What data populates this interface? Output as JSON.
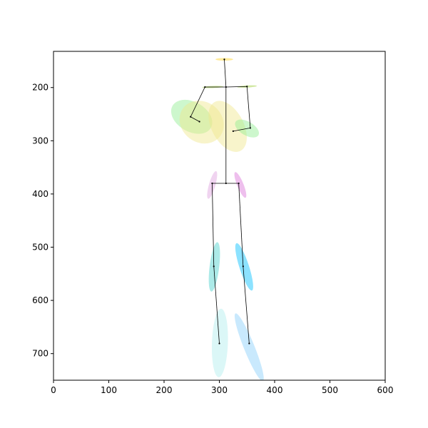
{
  "chart_data": {
    "type": "scatter",
    "title": "",
    "xlabel": "",
    "ylabel": "",
    "xlim": [
      0,
      600
    ],
    "ylim": [
      750,
      132
    ],
    "y_inverted": true,
    "grid": false,
    "x_ticks": [
      0,
      100,
      200,
      300,
      400,
      500,
      600
    ],
    "y_ticks": [
      200,
      300,
      400,
      500,
      600,
      700
    ],
    "joints": [
      {
        "name": "head",
        "x": 309,
        "y": 147
      },
      {
        "name": "neck",
        "x": 312,
        "y": 199
      },
      {
        "name": "right-shoulder",
        "x": 274,
        "y": 199
      },
      {
        "name": "left-shoulder",
        "x": 350,
        "y": 198
      },
      {
        "name": "right-elbow",
        "x": 248,
        "y": 255
      },
      {
        "name": "right-wrist",
        "x": 264,
        "y": 264
      },
      {
        "name": "left-elbow",
        "x": 356,
        "y": 276
      },
      {
        "name": "left-wrist",
        "x": 325,
        "y": 282
      },
      {
        "name": "pelvis",
        "x": 312,
        "y": 380
      },
      {
        "name": "right-hip",
        "x": 287,
        "y": 380
      },
      {
        "name": "left-hip",
        "x": 335,
        "y": 380
      },
      {
        "name": "right-knee",
        "x": 290,
        "y": 536
      },
      {
        "name": "left-knee",
        "x": 343,
        "y": 536
      },
      {
        "name": "right-ankle",
        "x": 300,
        "y": 681
      },
      {
        "name": "left-ankle",
        "x": 354,
        "y": 681
      }
    ],
    "bones": [
      [
        "head",
        "neck"
      ],
      [
        "neck",
        "right-shoulder"
      ],
      [
        "neck",
        "left-shoulder"
      ],
      [
        "right-shoulder",
        "right-elbow"
      ],
      [
        "right-elbow",
        "right-wrist"
      ],
      [
        "left-shoulder",
        "left-elbow"
      ],
      [
        "left-elbow",
        "left-wrist"
      ],
      [
        "neck",
        "pelvis"
      ],
      [
        "pelvis",
        "right-hip"
      ],
      [
        "pelvis",
        "left-hip"
      ],
      [
        "right-hip",
        "right-knee"
      ],
      [
        "right-knee",
        "right-ankle"
      ],
      [
        "left-hip",
        "left-knee"
      ],
      [
        "left-knee",
        "left-ankle"
      ]
    ],
    "ellipses": [
      {
        "name": "head",
        "cx": 309,
        "cy": 147,
        "rx": 16,
        "ry": 2.5,
        "angle": 0,
        "color": "#ffd21e"
      },
      {
        "name": "shoulders-right",
        "cx": 288,
        "cy": 199,
        "rx": 19,
        "ry": 2,
        "angle": -2,
        "color": "#9acd32"
      },
      {
        "name": "shoulders-left",
        "cx": 350,
        "cy": 198,
        "rx": 18,
        "ry": 2,
        "angle": -3,
        "color": "#9acd32"
      },
      {
        "name": "right-upper-arm",
        "cx": 250,
        "cy": 255,
        "rx": 40,
        "ry": 28,
        "angle": 30,
        "color": "#90ee90"
      },
      {
        "name": "right-forearm",
        "cx": 268,
        "cy": 265,
        "rx": 42,
        "ry": 38,
        "angle": 38,
        "color": "#f0e68c"
      },
      {
        "name": "torso",
        "cx": 315,
        "cy": 273,
        "rx": 50,
        "ry": 30,
        "angle": 62,
        "color": "#f0e68c"
      },
      {
        "name": "left-forearm",
        "cx": 350,
        "cy": 277,
        "rx": 24,
        "ry": 13,
        "angle": 30,
        "color": "#90ee90"
      },
      {
        "name": "right-hip",
        "cx": 287,
        "cy": 383,
        "rx": 26,
        "ry": 6,
        "angle": -74,
        "color": "#dda0dd"
      },
      {
        "name": "left-hip",
        "cx": 338,
        "cy": 383,
        "rx": 25,
        "ry": 6,
        "angle": 68,
        "color": "#da70d6"
      },
      {
        "name": "right-thigh",
        "cx": 291,
        "cy": 537,
        "rx": 45,
        "ry": 9,
        "angle": -83,
        "color": "#48d1cc"
      },
      {
        "name": "left-thigh",
        "cx": 345,
        "cy": 537,
        "rx": 45,
        "ry": 9,
        "angle": 72,
        "color": "#00bfff"
      },
      {
        "name": "right-shin",
        "cx": 301,
        "cy": 680,
        "rx": 62,
        "ry": 15,
        "angle": -88,
        "color": "#afeeee"
      },
      {
        "name": "left-shin",
        "cx": 354,
        "cy": 688,
        "rx": 66,
        "ry": 10,
        "angle": 68,
        "color": "#87cefa"
      }
    ]
  }
}
